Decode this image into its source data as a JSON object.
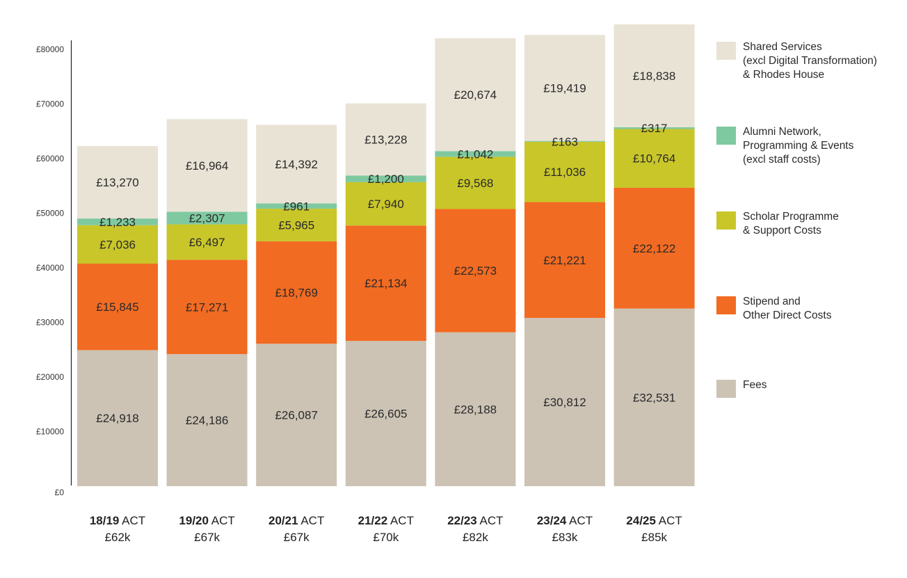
{
  "chart_data": {
    "type": "bar",
    "stacked": true,
    "title": "",
    "xlabel": "",
    "ylabel": "",
    "ylim": [
      0,
      80000
    ],
    "yticks": [
      0,
      10000,
      20000,
      30000,
      40000,
      50000,
      60000,
      70000,
      80000
    ],
    "ytick_labels": [
      "£0",
      "£10000",
      "£20000",
      "£30000",
      "£40000",
      "£50000",
      "£60000",
      "£70000",
      "£80000"
    ],
    "grid": false,
    "legend_position": "right",
    "categories": [
      {
        "year": "18/19",
        "suffix": "ACT",
        "total_label": "£62k"
      },
      {
        "year": "19/20",
        "suffix": "ACT",
        "total_label": "£67k"
      },
      {
        "year": "20/21",
        "suffix": "ACT",
        "total_label": "£67k"
      },
      {
        "year": "21/22",
        "suffix": "ACT",
        "total_label": "£70k"
      },
      {
        "year": "22/23",
        "suffix": "ACT",
        "total_label": "£82k"
      },
      {
        "year": "23/24",
        "suffix": "ACT",
        "total_label": "£83k"
      },
      {
        "year": "24/25",
        "suffix": "ACT",
        "total_label": "£85k"
      }
    ],
    "series": [
      {
        "name": "Fees",
        "legend": "Fees",
        "color": "#ccc3b5",
        "values": [
          24918,
          24186,
          26087,
          26605,
          28188,
          30812,
          32531
        ],
        "labels": [
          "£24,918",
          "£24,186",
          "£26,087",
          "£26,605",
          "£28,188",
          "£30,812",
          "£32,531"
        ]
      },
      {
        "name": "Stipend and Other Direct Costs",
        "legend": "Stipend and\nOther Direct Costs",
        "color": "#f26b22",
        "values": [
          15845,
          17271,
          18769,
          21134,
          22573,
          21221,
          22122
        ],
        "labels": [
          "£15,845",
          "£17,271",
          "£18,769",
          "£21,134",
          "£22,573",
          "£21,221",
          "£22,122"
        ]
      },
      {
        "name": "Scholar Programme & Support Costs",
        "legend": "Scholar Programme\n& Support Costs",
        "color": "#c9c62a",
        "values": [
          7036,
          6497,
          5965,
          7940,
          9568,
          11036,
          10764
        ],
        "labels": [
          "£7,036",
          "£6,497",
          "£5,965",
          "£7,940",
          "£9,568",
          "£11,036",
          "£10,764"
        ]
      },
      {
        "name": "Alumni Network, Programming & Events (excl staff costs)",
        "legend": "Alumni Network,\nProgramming & Events\n(excl staff costs)",
        "color": "#7fc9a0",
        "values": [
          1233,
          2307,
          961,
          1200,
          1042,
          163,
          317
        ],
        "labels": [
          "£1,233",
          "£2,307",
          "£961",
          "£1,200",
          "£1,042",
          "£163",
          "£317"
        ]
      },
      {
        "name": "Shared Services (excl Digital Transformation) & Rhodes House",
        "legend": "Shared Services\n(excl Digital Transformation)\n& Rhodes House",
        "color": "#e9e3d5",
        "values": [
          13270,
          16964,
          14392,
          13228,
          20674,
          19419,
          18838
        ],
        "labels": [
          "£13,270",
          "£16,964",
          "£14,392",
          "£13,228",
          "£20,674",
          "£19,419",
          "£18,838"
        ]
      }
    ]
  }
}
